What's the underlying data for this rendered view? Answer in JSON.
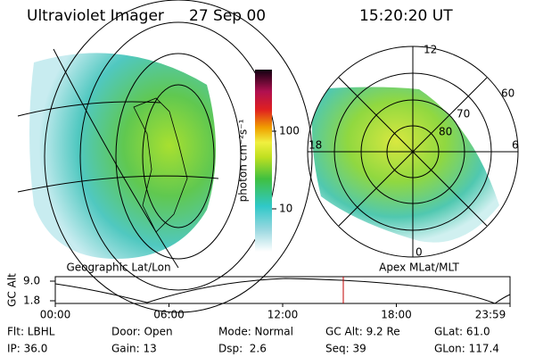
{
  "header": {
    "title": "Ultraviolet Imager",
    "date": "27 Sep 00",
    "time": "15:20:20 UT"
  },
  "colorbar": {
    "label": "photon cm⁻²s⁻¹",
    "ticks": [
      "100",
      "10"
    ]
  },
  "panels": {
    "left_label": "Geographic Lat/Lon",
    "right_label": "Apex MLat/MLT",
    "polar_labels": {
      "top": "12",
      "left": "18",
      "right": "6",
      "bottom": "0",
      "ring60": "60",
      "ring70": "70",
      "ring80": "80"
    }
  },
  "timeline": {
    "ylabel": "GC Alt",
    "yticks": [
      "9.0",
      "1.8"
    ],
    "xticks": [
      "00:00",
      "06:00",
      "12:00",
      "18:00",
      "23:59"
    ]
  },
  "footer": {
    "rows": [
      [
        "Flt: LBHL",
        "Door: Open",
        "Mode: Normal",
        "GC Alt: 9.2 Re",
        "GLat: 61.0"
      ],
      [
        "IP: 36.0",
        "Gain: 13",
        "Dsp:  2.6",
        "Seq: 39",
        "GLon: 117.4"
      ]
    ]
  }
}
